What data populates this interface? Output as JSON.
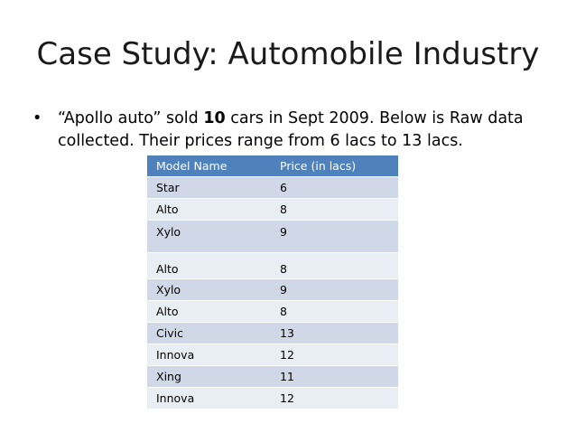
{
  "slide": {
    "title": "Case Study: Automobile Industry",
    "bullet": {
      "symbol": "•",
      "text_part1": "“Apollo auto” sold ",
      "text_bold": "10",
      "text_part2": " cars in Sept 2009. Below is Raw data collected. Their prices range from 6 lacs to 13 lacs."
    }
  },
  "table": {
    "headers": [
      "Model Name",
      "Price  (in lacs)"
    ],
    "rows": [
      [
        "Star",
        "6"
      ],
      [
        "Alto",
        "8"
      ],
      [
        "Xylo",
        "9"
      ],
      [
        "Alto",
        "8"
      ],
      [
        "Xylo",
        "9"
      ],
      [
        "Alto",
        "8"
      ],
      [
        "Civic",
        "13"
      ],
      [
        "Innova",
        "12"
      ],
      [
        "Xing",
        "11"
      ],
      [
        "Innova",
        "12"
      ]
    ],
    "colors": {
      "header": "#4f81bd",
      "row_dark": "#d0d8e8",
      "row_light": "#e9edf4"
    }
  }
}
